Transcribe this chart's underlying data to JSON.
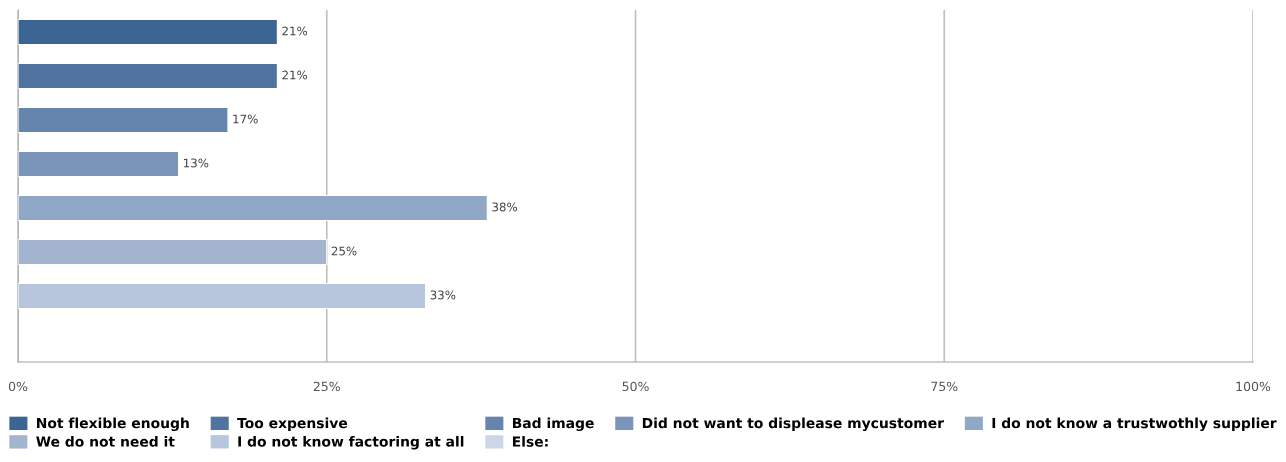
{
  "chart_data": {
    "type": "bar",
    "orientation": "horizontal",
    "categories": [
      null
    ],
    "series": [
      {
        "name": "Not flexible enough",
        "color": "#3d6594",
        "values": [
          21
        ],
        "value_labels": [
          "21%"
        ]
      },
      {
        "name": "Too expensive",
        "color": "#50739f",
        "values": [
          21
        ],
        "value_labels": [
          "21%"
        ]
      },
      {
        "name": "Bad image",
        "color": "#6585ad",
        "values": [
          17
        ],
        "value_labels": [
          "17%"
        ]
      },
      {
        "name": "Did not want to displease mycustomer",
        "color": "#7a95b9",
        "values": [
          13
        ],
        "value_labels": [
          "13%"
        ]
      },
      {
        "name": "I do not know a trustwothly supplier",
        "color": "#90a7c5",
        "values": [
          38
        ],
        "value_labels": [
          "38%"
        ]
      },
      {
        "name": "We do not need it",
        "color": "#a3b4cf",
        "values": [
          25
        ],
        "value_labels": [
          "25%"
        ]
      },
      {
        "name": "I do not know factoring at all",
        "color": "#b7c5dd",
        "values": [
          33
        ],
        "value_labels": [
          "33%"
        ]
      },
      {
        "name": "Else:",
        "color": "#ccd6e8",
        "values": [
          null
        ],
        "value_labels": [
          null
        ]
      }
    ],
    "xlim": [
      0,
      100
    ],
    "xticks": [
      {
        "value": 0,
        "label": "0%"
      },
      {
        "value": 25,
        "label": "25%"
      },
      {
        "value": 50,
        "label": "50%"
      },
      {
        "value": 75,
        "label": "75%"
      },
      {
        "value": 100,
        "label": "100%"
      }
    ],
    "grid": "x",
    "legend": "bottom",
    "tick_labels": "x"
  }
}
